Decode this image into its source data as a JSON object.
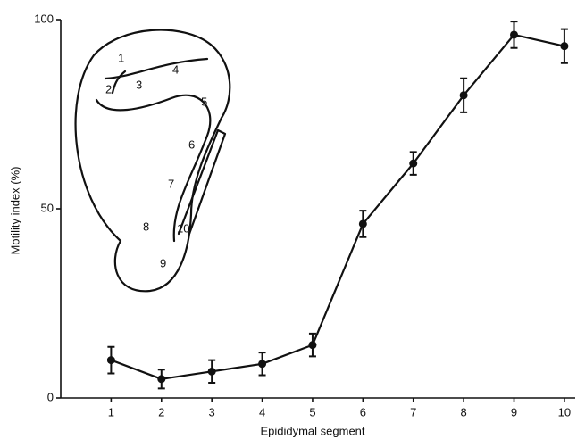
{
  "chart_data": {
    "type": "line",
    "x_label": "Epididymal segment",
    "y_label": "Motility index (%)",
    "x": [
      1,
      2,
      3,
      4,
      5,
      6,
      7,
      8,
      9,
      10
    ],
    "series": [
      {
        "color": "#111111",
        "values": [
          10,
          5,
          7,
          9,
          14,
          46,
          62,
          80,
          96,
          93
        ],
        "errors": [
          3.5,
          2.5,
          3,
          3,
          3,
          3.5,
          3,
          4.5,
          3.5,
          4.5
        ]
      }
    ],
    "xlim": [
      0,
      10.25
    ],
    "xticks": [
      1,
      2,
      3,
      4,
      5,
      6,
      7,
      8,
      9,
      10
    ],
    "ylim": [
      0,
      100
    ],
    "yticks": [
      0,
      50,
      100
    ],
    "grid": false,
    "inset_labels": [
      "1",
      "2",
      "3",
      "4",
      "5",
      "6",
      "7",
      "8",
      "9",
      "10"
    ]
  }
}
